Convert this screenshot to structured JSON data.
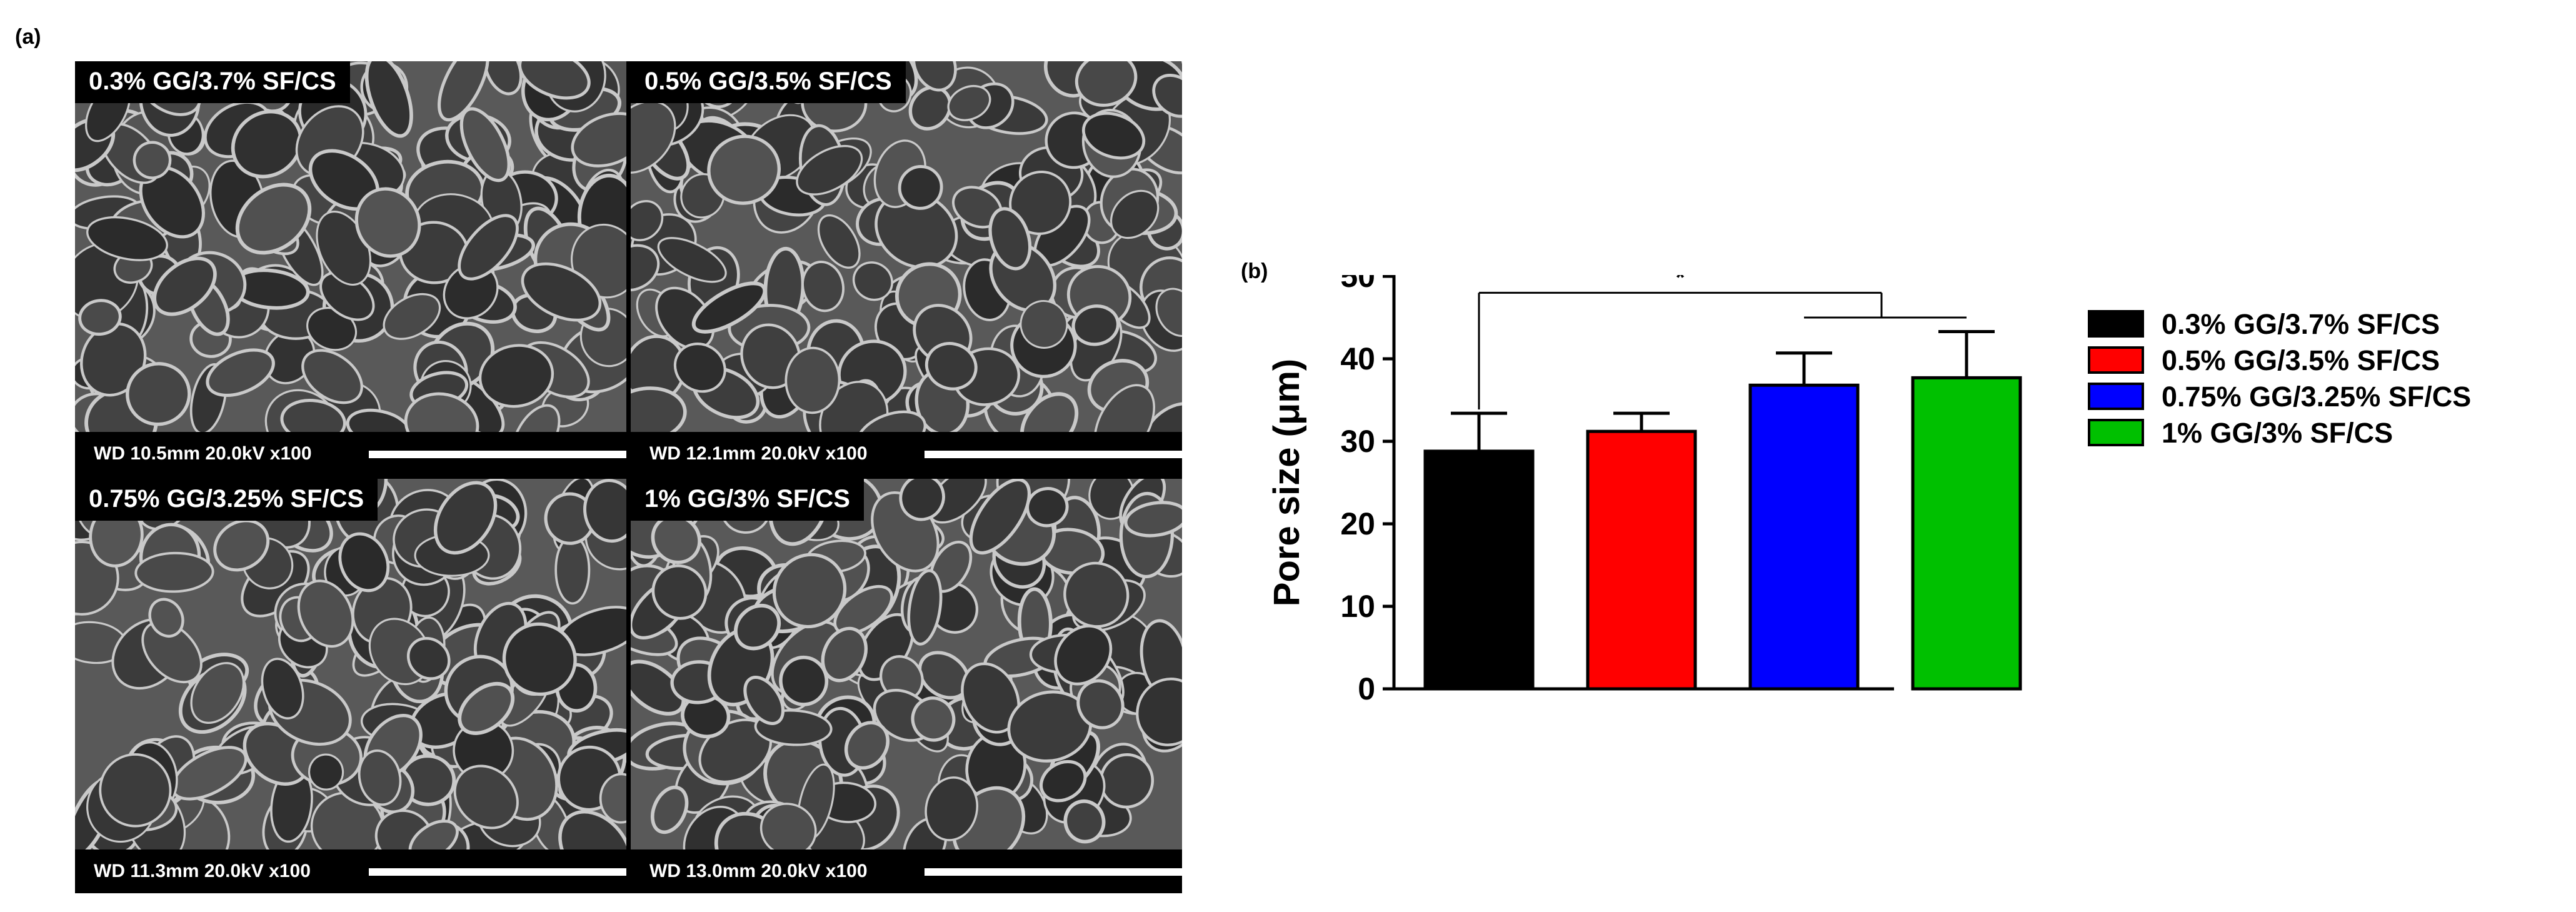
{
  "panel_labels": {
    "a": "(a)",
    "b": "(b)"
  },
  "sem_panels": [
    {
      "title": "0.3% GG/3.7% SF/CS",
      "info": "WD 10.5mm 20.0kV x100"
    },
    {
      "title": "0.5% GG/3.5% SF/CS",
      "info": "WD 12.1mm 20.0kV x100"
    },
    {
      "title": "0.75% GG/3.25% SF/CS",
      "info": "WD 11.3mm 20.0kV x100"
    },
    {
      "title": "1% GG/3% SF/CS",
      "info": "WD 13.0mm 20.0kV x100"
    }
  ],
  "chart_data": {
    "type": "bar",
    "title": "",
    "xlabel": "",
    "ylabel": "Pore size (μm)",
    "ylim": [
      0,
      50
    ],
    "yticks": [
      0,
      10,
      20,
      30,
      40,
      50
    ],
    "categories": [
      "0.3% GG/3.7% SF/CS",
      "0.5% GG/3.5% SF/CS",
      "0.75% GG/3.25% SF/CS",
      "1% GG/3% SF/CS"
    ],
    "values": [
      28.8,
      31.2,
      36.8,
      37.7
    ],
    "errors": [
      4.6,
      2.2,
      3.9,
      5.6
    ],
    "colors": [
      "#000000",
      "#ff0000",
      "#0000ff",
      "#00c000"
    ],
    "show_xticklabels": false,
    "grid": false,
    "legend_position": "right",
    "annotations": [
      {
        "text": "*",
        "type": "significance",
        "from": "0.3% GG/3.7% SF/CS",
        "to": [
          "0.75% GG/3.25% SF/CS",
          "1% GG/3% SF/CS"
        ]
      }
    ]
  }
}
